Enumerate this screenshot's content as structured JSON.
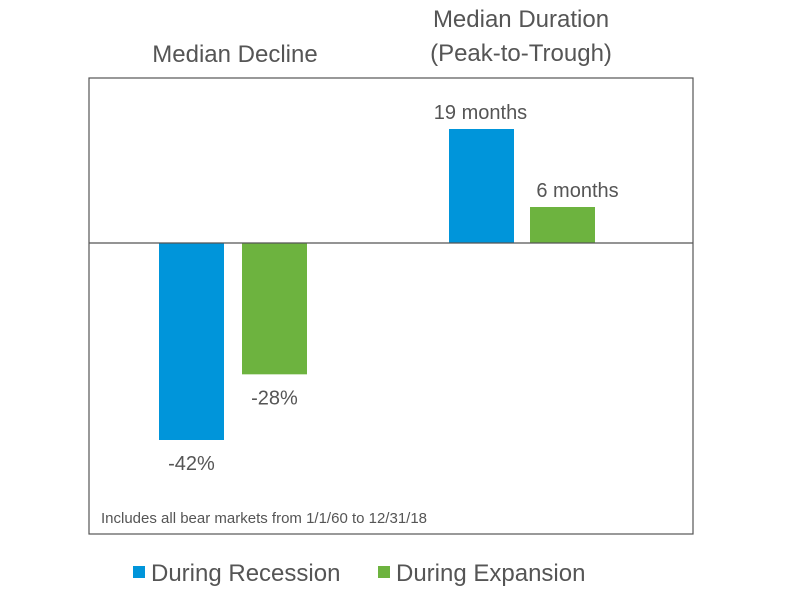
{
  "chart_data": {
    "type": "bar",
    "note": "Includes all bear markets from 1/1/60 to 12/31/18",
    "groups": [
      {
        "title_lines": [
          "Median Decline"
        ],
        "values": [
          -42,
          -28
        ],
        "labels": [
          "-42%",
          "-28%"
        ],
        "unit": "percent"
      },
      {
        "title_lines": [
          "Median Duration",
          "(Peak-to-Trough)"
        ],
        "values": [
          19,
          6
        ],
        "labels": [
          "19 months",
          "6 months"
        ],
        "unit": "months"
      }
    ],
    "series": [
      {
        "name": "During Recession",
        "color": "#0095DA"
      },
      {
        "name": "During Expansion",
        "color": "#6DB33F"
      }
    ],
    "grid": false,
    "legend_position": "bottom"
  }
}
